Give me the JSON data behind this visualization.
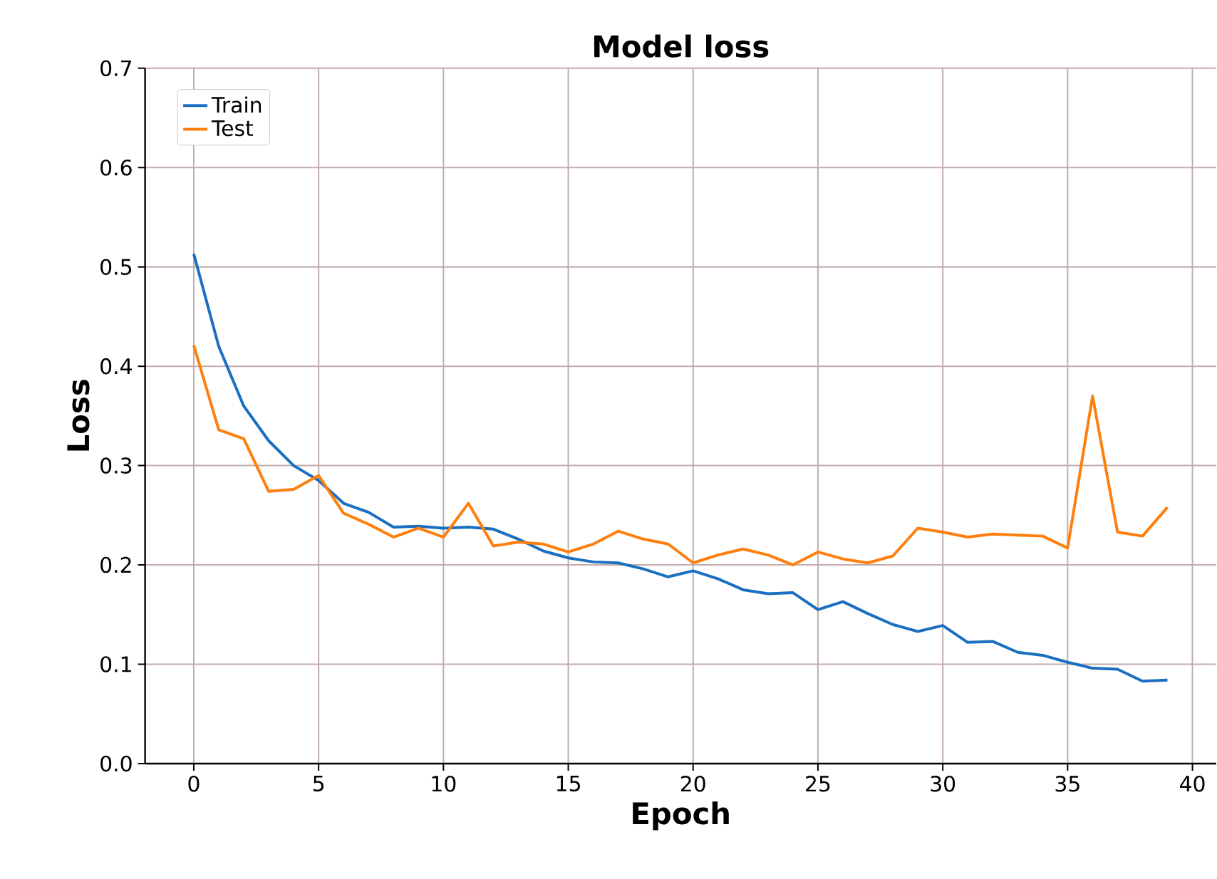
{
  "chart_data": {
    "type": "line",
    "title": "Model loss",
    "xlabel": "Epoch",
    "ylabel": "Loss",
    "x": [
      0,
      1,
      2,
      3,
      4,
      5,
      6,
      7,
      8,
      9,
      10,
      11,
      12,
      13,
      14,
      15,
      16,
      17,
      18,
      19,
      20,
      21,
      22,
      23,
      24,
      25,
      26,
      27,
      28,
      29,
      30,
      31,
      32,
      33,
      34,
      35,
      36,
      37,
      38,
      39
    ],
    "series": [
      {
        "name": "Train",
        "color": "#1a6fc0",
        "values": [
          0.513,
          0.42,
          0.36,
          0.325,
          0.3,
          0.285,
          0.262,
          0.253,
          0.238,
          0.239,
          0.237,
          0.238,
          0.236,
          0.226,
          0.214,
          0.207,
          0.203,
          0.202,
          0.196,
          0.188,
          0.194,
          0.186,
          0.175,
          0.171,
          0.172,
          0.155,
          0.163,
          0.151,
          0.14,
          0.133,
          0.139,
          0.122,
          0.123,
          0.112,
          0.109,
          0.102,
          0.096,
          0.095,
          0.083,
          0.084
        ]
      },
      {
        "name": "Test",
        "color": "#ff7f0e",
        "values": [
          0.421,
          0.336,
          0.327,
          0.274,
          0.276,
          0.29,
          0.252,
          0.241,
          0.228,
          0.237,
          0.228,
          0.262,
          0.219,
          0.223,
          0.221,
          0.213,
          0.221,
          0.234,
          0.226,
          0.221,
          0.202,
          0.21,
          0.216,
          0.21,
          0.2,
          0.213,
          0.206,
          0.202,
          0.209,
          0.237,
          0.233,
          0.228,
          0.231,
          0.23,
          0.229,
          0.217,
          0.37,
          0.233,
          0.229,
          0.258
        ]
      }
    ],
    "xlim": [
      -1.95,
      40.95
    ],
    "ylim": [
      0,
      0.7
    ],
    "xticks": [
      0,
      5,
      10,
      15,
      20,
      25,
      30,
      35,
      40
    ],
    "yticks": [
      {
        "value": 0,
        "label": "0.0"
      },
      0.1,
      0.2,
      0.3,
      0.4,
      0.5,
      0.6,
      0.7
    ],
    "grid": true,
    "legend": "top left",
    "marker": "none",
    "line_style": "solid"
  }
}
